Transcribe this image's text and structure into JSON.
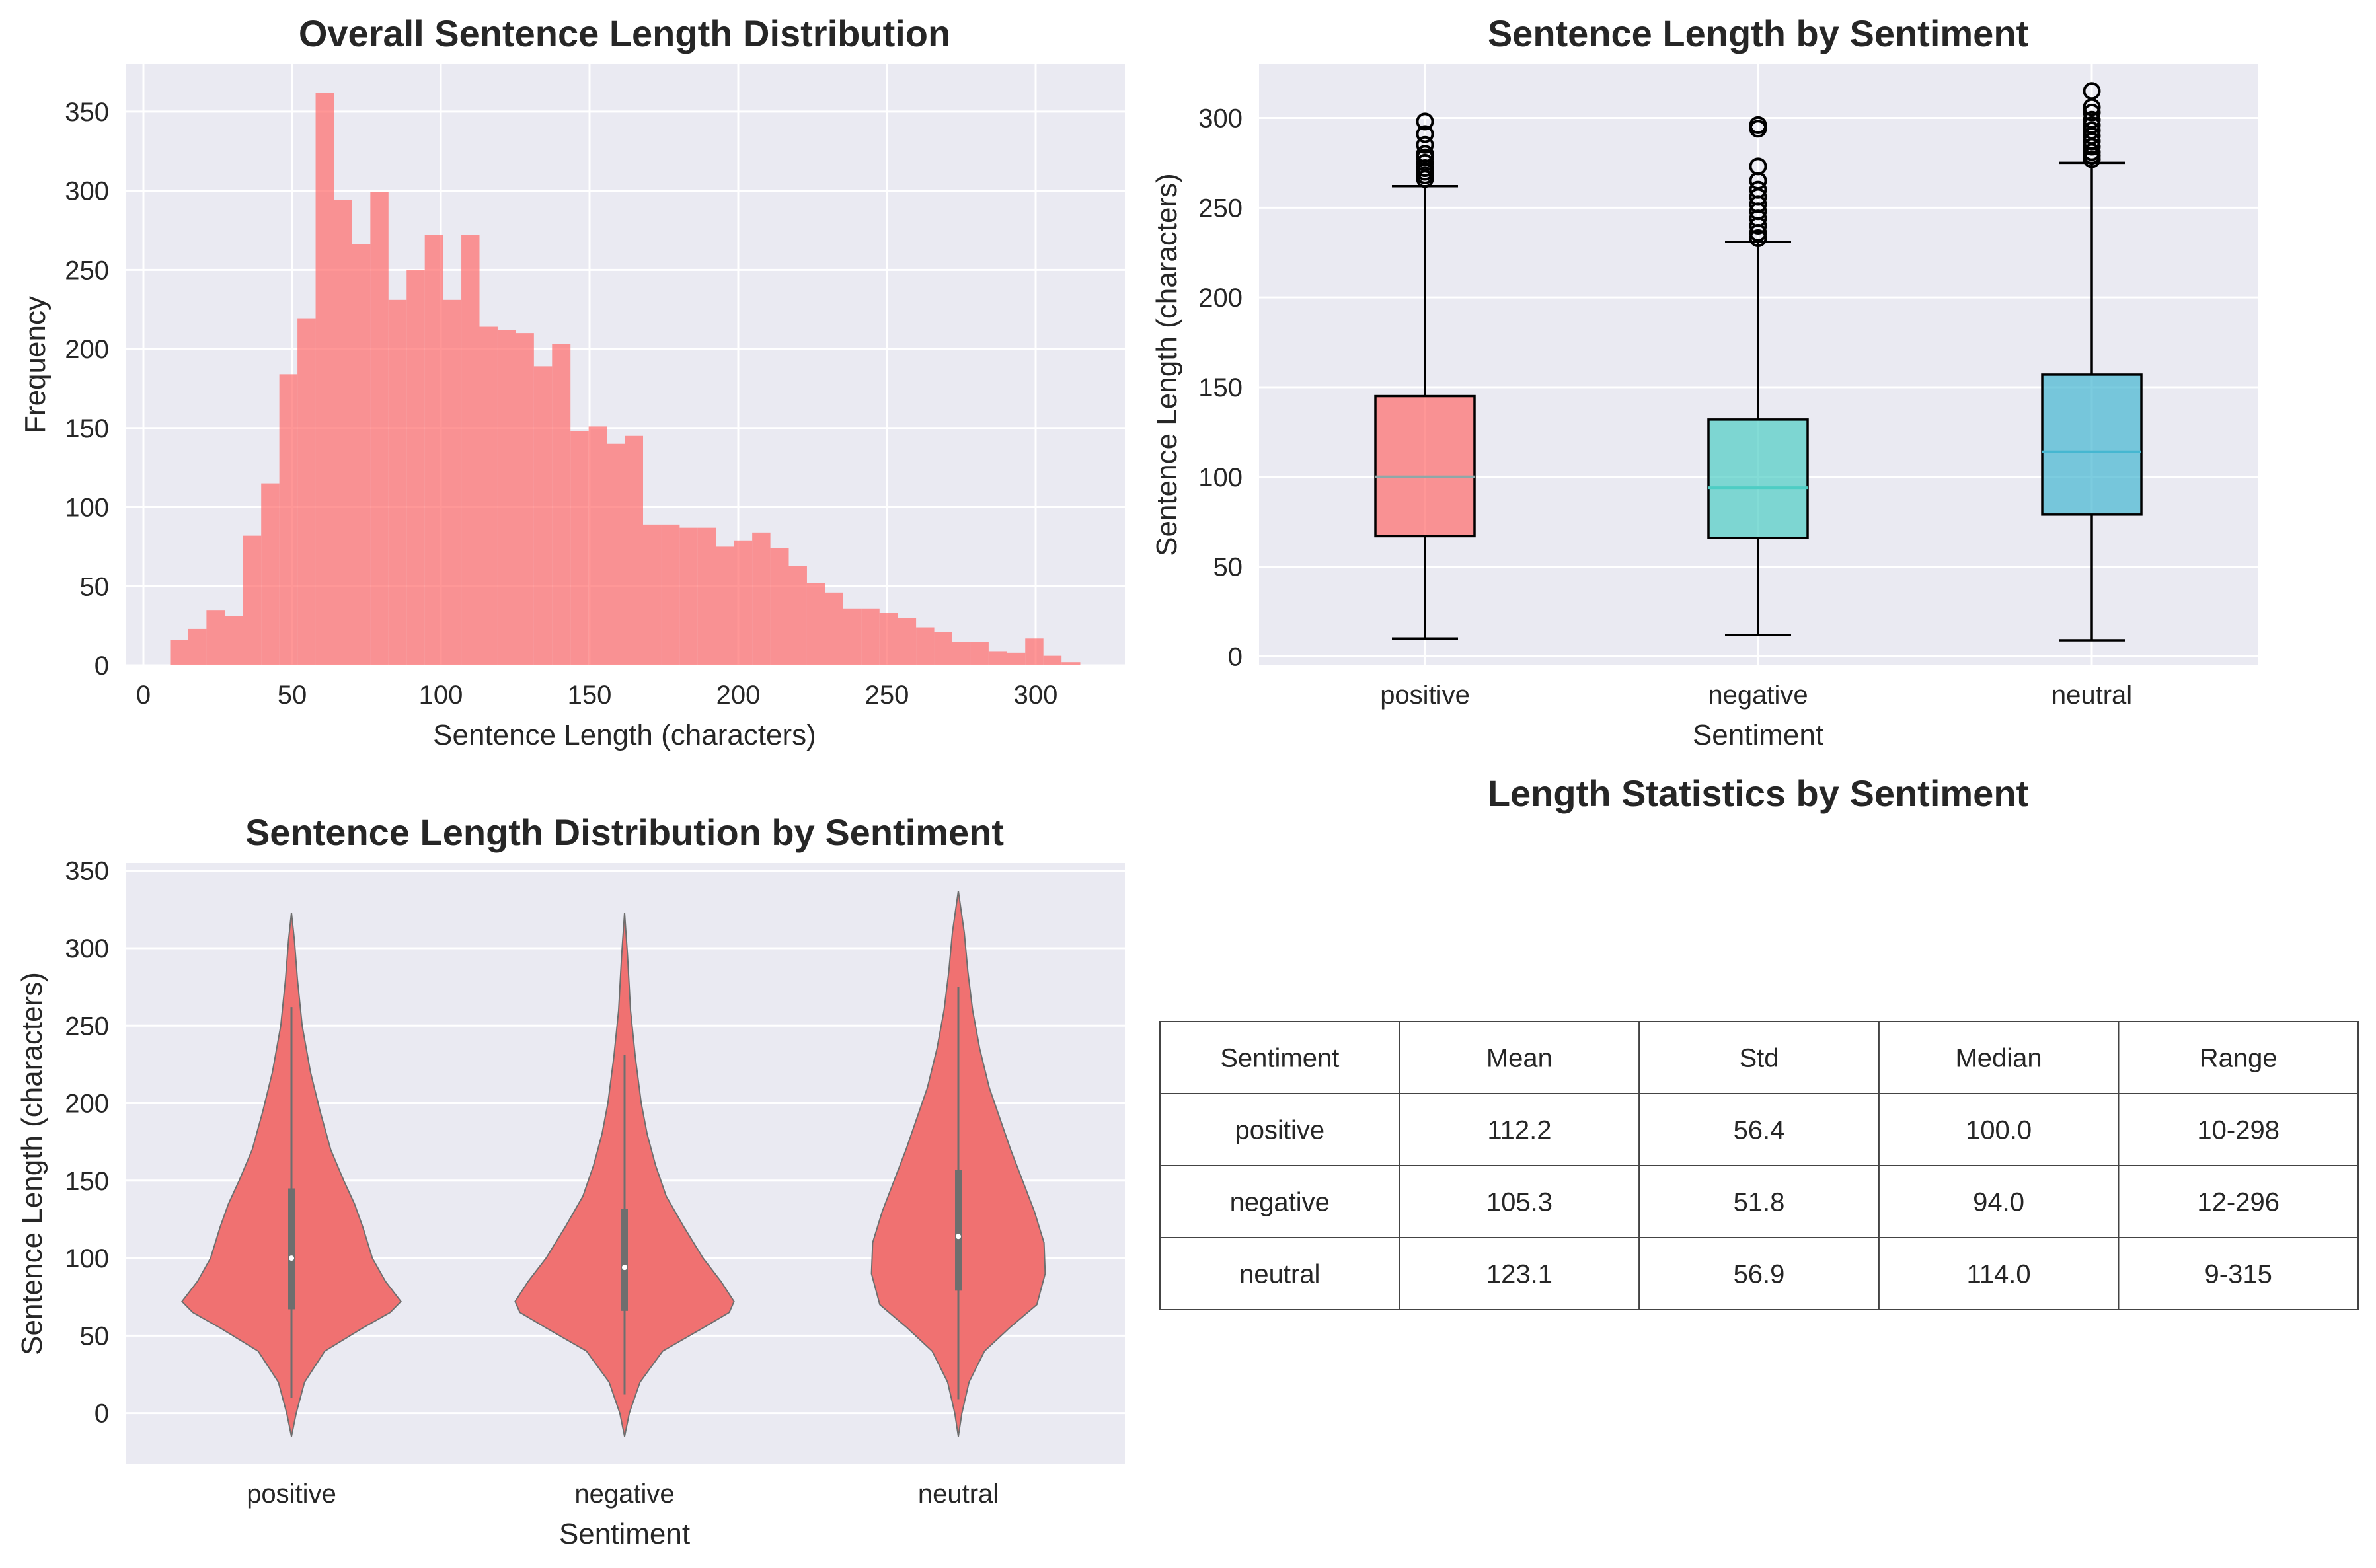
{
  "chart_data": [
    {
      "type": "histogram",
      "title": "Overall Sentence Length Distribution",
      "xlabel": "Sentence Length (characters)",
      "ylabel": "Frequency",
      "xlim": [
        -6,
        330
      ],
      "ylim": [
        0,
        380
      ],
      "xticks": [
        0,
        50,
        100,
        150,
        200,
        250,
        300
      ],
      "yticks": [
        0,
        50,
        100,
        150,
        200,
        250,
        300,
        350
      ],
      "grid": true,
      "color": "#ff6b6b",
      "bin_edges": [
        9.0,
        15.1,
        21.2,
        27.4,
        33.5,
        39.6,
        45.7,
        51.8,
        57.9,
        64.1,
        70.2,
        76.3,
        82.4,
        88.5,
        94.6,
        100.8,
        106.9,
        113.0,
        119.1,
        125.2,
        131.3,
        137.4,
        143.6,
        149.7,
        155.8,
        161.9,
        168.0,
        174.1,
        180.3,
        186.4,
        192.5,
        198.6,
        204.7,
        210.8,
        217.0,
        223.1,
        229.2,
        235.3,
        241.4,
        247.5,
        253.6,
        259.8,
        265.9,
        272.0,
        278.1,
        284.2,
        290.3,
        296.5,
        302.6,
        308.7,
        315.0
      ],
      "counts": [
        16,
        23,
        35,
        31,
        82,
        115,
        184,
        219,
        362,
        294,
        266,
        299,
        231,
        250,
        272,
        231,
        272,
        214,
        212,
        210,
        189,
        203,
        148,
        151,
        140,
        145,
        89,
        89,
        87,
        87,
        75,
        79,
        84,
        74,
        63,
        52,
        46,
        36,
        36,
        33,
        30,
        24,
        21,
        15,
        15,
        9,
        8,
        17,
        6,
        2
      ]
    },
    {
      "type": "box",
      "title": "Sentence Length by Sentiment",
      "xlabel": "Sentiment",
      "ylabel": "Sentence Length (characters)",
      "categories": [
        "positive",
        "negative",
        "neutral"
      ],
      "ylim": [
        -5,
        330
      ],
      "yticks": [
        0,
        50,
        100,
        150,
        200,
        250,
        300
      ],
      "grid": true,
      "boxes": [
        {
          "category": "positive",
          "color": "#ff6b6b",
          "whisker_low": 10,
          "q1": 67,
          "median": 100,
          "q3": 145,
          "whisker_high": 262,
          "outliers": [
            266,
            268,
            270,
            272,
            275,
            278,
            280,
            285,
            291,
            298
          ]
        },
        {
          "category": "negative",
          "color": "#4ecdc4",
          "whisker_low": 12,
          "q1": 66,
          "median": 94,
          "q3": 132,
          "whisker_high": 231,
          "outliers": [
            233,
            236,
            240,
            244,
            248,
            252,
            256,
            260,
            265,
            273,
            294,
            296
          ]
        },
        {
          "category": "neutral",
          "color": "#45b7d1",
          "whisker_low": 9,
          "q1": 79,
          "median": 114,
          "q3": 157,
          "whisker_high": 275,
          "outliers": [
            277,
            279,
            281,
            284,
            287,
            290,
            293,
            296,
            299,
            303,
            306,
            315
          ]
        }
      ]
    },
    {
      "type": "violin",
      "title": "Sentence Length Distribution by Sentiment",
      "xlabel": "Sentiment",
      "ylabel": "Sentence Length (characters)",
      "categories": [
        "positive",
        "negative",
        "neutral"
      ],
      "ylim": [
        -33,
        355
      ],
      "yticks": [
        0,
        50,
        100,
        150,
        200,
        250,
        300,
        350
      ],
      "grid": true,
      "color": "#f07171",
      "violins": [
        {
          "category": "positive",
          "ymin": -15,
          "ymax": 323,
          "q1": 67,
          "median": 100,
          "q3": 145,
          "whisker_low": 10,
          "whisker_high": 262,
          "profile": [
            [
              -15,
              0
            ],
            [
              0,
              0.04
            ],
            [
              20,
              0.11
            ],
            [
              40,
              0.28
            ],
            [
              55,
              0.6
            ],
            [
              65,
              0.83
            ],
            [
              72,
              0.92
            ],
            [
              85,
              0.79
            ],
            [
              100,
              0.68
            ],
            [
              120,
              0.6
            ],
            [
              135,
              0.53
            ],
            [
              150,
              0.44
            ],
            [
              170,
              0.33
            ],
            [
              195,
              0.24
            ],
            [
              220,
              0.16
            ],
            [
              250,
              0.09
            ],
            [
              280,
              0.05
            ],
            [
              305,
              0.025
            ],
            [
              323,
              0
            ]
          ]
        },
        {
          "category": "negative",
          "ymin": -15,
          "ymax": 323,
          "q1": 66,
          "median": 94,
          "q3": 132,
          "whisker_low": 12,
          "whisker_high": 231,
          "profile": [
            [
              -15,
              0
            ],
            [
              0,
              0.04
            ],
            [
              20,
              0.13
            ],
            [
              40,
              0.32
            ],
            [
              55,
              0.66
            ],
            [
              65,
              0.88
            ],
            [
              72,
              0.92
            ],
            [
              85,
              0.81
            ],
            [
              100,
              0.66
            ],
            [
              120,
              0.5
            ],
            [
              140,
              0.35
            ],
            [
              160,
              0.26
            ],
            [
              180,
              0.19
            ],
            [
              200,
              0.14
            ],
            [
              230,
              0.09
            ],
            [
              260,
              0.05
            ],
            [
              295,
              0.025
            ],
            [
              323,
              0
            ]
          ]
        },
        {
          "category": "neutral",
          "ymin": -15,
          "ymax": 337,
          "q1": 79,
          "median": 114,
          "q3": 157,
          "whisker_low": 9,
          "whisker_high": 275,
          "profile": [
            [
              -15,
              0
            ],
            [
              0,
              0.03
            ],
            [
              20,
              0.09
            ],
            [
              40,
              0.22
            ],
            [
              55,
              0.43
            ],
            [
              70,
              0.66
            ],
            [
              90,
              0.73
            ],
            [
              110,
              0.72
            ],
            [
              130,
              0.64
            ],
            [
              150,
              0.54
            ],
            [
              170,
              0.44
            ],
            [
              190,
              0.35
            ],
            [
              210,
              0.26
            ],
            [
              235,
              0.18
            ],
            [
              260,
              0.12
            ],
            [
              285,
              0.08
            ],
            [
              310,
              0.05
            ],
            [
              337,
              0
            ]
          ]
        }
      ]
    },
    {
      "type": "table",
      "title": "Length Statistics by Sentiment",
      "columns": [
        "Sentiment",
        "Mean",
        "Std",
        "Median",
        "Range"
      ],
      "rows": [
        [
          "positive",
          "112.2",
          "56.4",
          "100.0",
          "10-298"
        ],
        [
          "negative",
          "105.3",
          "51.8",
          "94.0",
          "12-296"
        ],
        [
          "neutral",
          "123.1",
          "56.9",
          "114.0",
          "9-315"
        ]
      ]
    }
  ]
}
